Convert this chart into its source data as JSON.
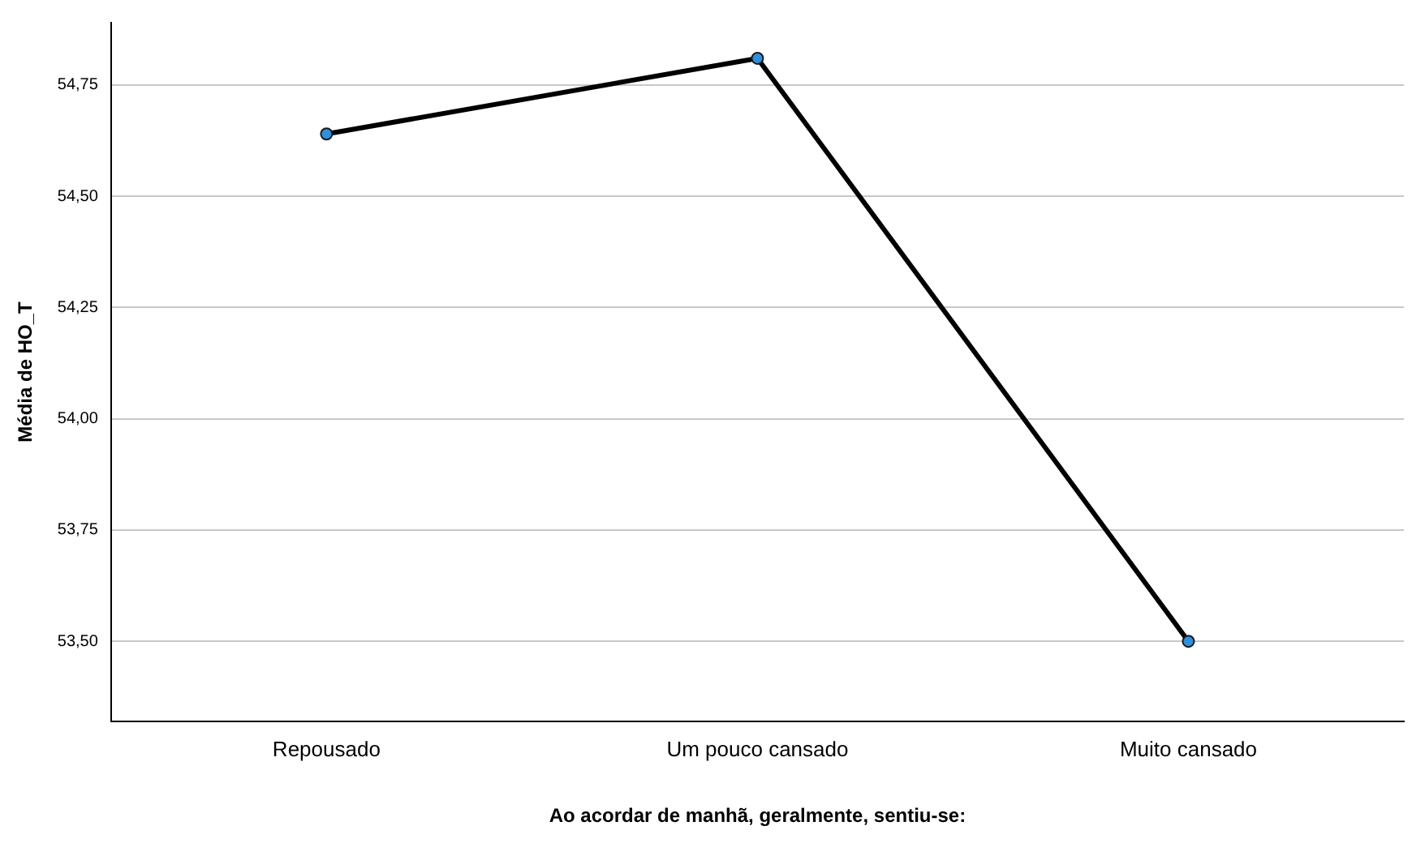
{
  "chart_data": {
    "type": "line",
    "xlabel": "Ao acordar de manhã, geralmente, sentiu-se:",
    "ylabel": "Média de HO_T",
    "categories": [
      "Repousado",
      "Um pouco cansado",
      "Muito cansado"
    ],
    "series": [
      {
        "color": "#000000",
        "values": [
          54.64,
          54.81,
          53.5
        ]
      }
    ],
    "ylim": [
      53.32,
      54.89
    ],
    "yticks": [
      {
        "value": 53.5,
        "label": "53,50"
      },
      {
        "value": 53.75,
        "label": "53,75"
      },
      {
        "value": 54,
        "label": "54,00"
      },
      {
        "value": 54.25,
        "label": "54,25"
      },
      {
        "value": 54.5,
        "label": "54,50"
      },
      {
        "value": 54.75,
        "label": "54,75"
      }
    ],
    "grid": "y",
    "marker": "circle",
    "legend": false
  }
}
